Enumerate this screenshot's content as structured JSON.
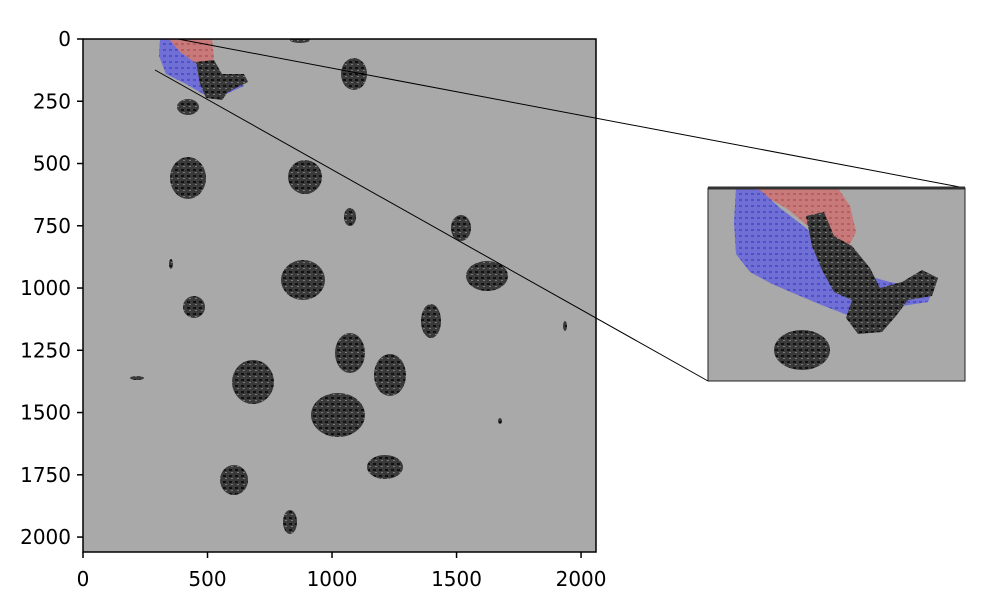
{
  "figure": {
    "background": "#ffffff",
    "plot_background": "#a9a9a9",
    "blob_color": "#3a3a3a",
    "blob_dark": "#111111",
    "highlight_red": "#c87878",
    "highlight_blue": "#7070d8",
    "axis_color": "#000000"
  },
  "axes": {
    "x_ticks": [
      {
        "value": 0,
        "label": "0"
      },
      {
        "value": 500,
        "label": "500"
      },
      {
        "value": 1000,
        "label": "1000"
      },
      {
        "value": 1500,
        "label": "1500"
      },
      {
        "value": 2000,
        "label": "2000"
      }
    ],
    "y_ticks": [
      {
        "value": 0,
        "label": "0"
      },
      {
        "value": 250,
        "label": "250"
      },
      {
        "value": 500,
        "label": "500"
      },
      {
        "value": 750,
        "label": "750"
      },
      {
        "value": 1000,
        "label": "1000"
      },
      {
        "value": 1250,
        "label": "1250"
      },
      {
        "value": 1500,
        "label": "1500"
      },
      {
        "value": 1750,
        "label": "1750"
      },
      {
        "value": 2000,
        "label": "2000"
      }
    ]
  }
}
